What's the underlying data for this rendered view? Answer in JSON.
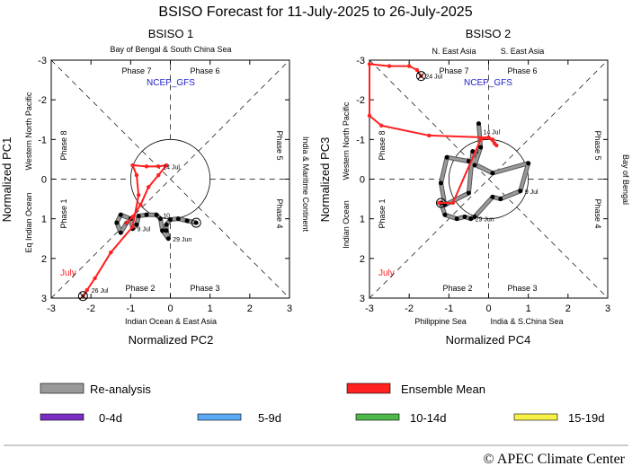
{
  "title": "BSISO Forecast for 11-July-2025 to 26-July-2025",
  "footer": "© APEC Climate Center",
  "legend": {
    "reanalysis": "Re-analysis",
    "ensemble": "Ensemble Mean",
    "leads": [
      {
        "label": "0-4d",
        "color": "#7a2fc2"
      },
      {
        "label": "5-9d",
        "color": "#5aa9f5"
      },
      {
        "label": "10-14d",
        "color": "#4cb84a"
      },
      {
        "label": "15-19d",
        "color": "#f7f047"
      }
    ],
    "reanalysis_color": "#999999",
    "ensemble_color": "#ff2020"
  },
  "chart_data": [
    {
      "type": "scatter",
      "subtitle": "BSISO 1",
      "xlabel": "Normalized PC2",
      "ylabel": "Normalized PC1",
      "xlim": [
        -3,
        3
      ],
      "ylim": [
        3,
        -3
      ],
      "xticks": [
        "-3",
        "-2",
        "-1",
        "0",
        "1",
        "2",
        "3"
      ],
      "yticks": [
        "-3",
        "-2",
        "-1",
        "0",
        "1",
        "2",
        "3"
      ],
      "source_label": "NCEP_GFS",
      "month_label": "July",
      "region_labels": {
        "top": "Bay of Bengal & South China Sea",
        "bottom": "Indian Ocean & East Asia",
        "left_outer": "Eq Indian Ocean",
        "left_inner": "Western North Pacific",
        "right": "India & Maritime Continent"
      },
      "phases": {
        "p1": "Phase 1",
        "p2": "Phase 2",
        "p3": "Phase 3",
        "p4": "Phase 4",
        "p5": "Phase 5",
        "p6": "Phase 6",
        "p7": "Phase 7",
        "p8": "Phase 8"
      },
      "series": [
        {
          "name": "Re-analysis",
          "points": [
            [
              0.65,
              -1.1
            ],
            [
              0.42,
              -1.05
            ],
            [
              0.2,
              -1.0
            ],
            [
              0,
              -1.02
            ],
            [
              -0.1,
              -1.15
            ],
            [
              -0.1,
              -1.3
            ],
            [
              -0.05,
              -1.5
            ],
            [
              -0.2,
              -1.3
            ],
            [
              -0.25,
              -1.0
            ],
            [
              -0.35,
              -0.9
            ],
            [
              -0.6,
              -0.9
            ],
            [
              -0.8,
              -0.93
            ],
            [
              -0.85,
              -1.15
            ],
            [
              -0.95,
              -1.25
            ],
            [
              -1.0,
              -1.0
            ],
            [
              -1.25,
              -0.9
            ],
            [
              -1.35,
              -1.1
            ],
            [
              -1.25,
              -1.35
            ],
            [
              -1.1,
              -1.1
            ]
          ],
          "point_labels": [
            {
              "text": "29 Jun",
              "at": [
                -0.05,
                -1.5
              ]
            },
            {
              "text": "9 Jul",
              "at": [
                -0.95,
                -1.25
              ]
            },
            {
              "text": "4",
              "at": [
                -0.5,
                -0.9
              ]
            },
            {
              "text": "10",
              "at": [
                -0.3,
                -0.9
              ]
            }
          ]
        },
        {
          "name": "Ensemble Mean",
          "points": [
            [
              -1.1,
              -1.1
            ],
            [
              -0.95,
              -0.95
            ],
            [
              -0.75,
              -0.65
            ],
            [
              -0.55,
              -0.2
            ],
            [
              -0.3,
              0.1
            ],
            [
              -0.1,
              0.35
            ],
            [
              -0.3,
              0.32
            ],
            [
              -0.6,
              0.32
            ],
            [
              -0.95,
              0.35
            ],
            [
              -0.85,
              0.1
            ],
            [
              -0.8,
              -0.4
            ],
            [
              -0.95,
              -1.2
            ],
            [
              -1.5,
              -1.85
            ],
            [
              -1.9,
              -2.5
            ],
            [
              -2.1,
              -2.8
            ],
            [
              -2.2,
              -2.95
            ]
          ],
          "point_labels": [
            {
              "text": "14 Jul",
              "at": [
                -0.3,
                0.32
              ]
            },
            {
              "text": "26 Jul",
              "at": [
                -2.1,
                -2.8
              ]
            }
          ]
        }
      ]
    },
    {
      "type": "scatter",
      "subtitle": "BSISO 2",
      "xlabel": "Normalized PC4",
      "ylabel": "Normalized PC3",
      "xlim": [
        -3,
        3
      ],
      "ylim": [
        3,
        -3
      ],
      "xticks": [
        "-3",
        "-2",
        "-1",
        "0",
        "1",
        "2",
        "3"
      ],
      "yticks": [
        "-3",
        "-2",
        "-1",
        "0",
        "1",
        "2",
        "3"
      ],
      "source_label": "NCEP_GFS",
      "month_label": "July",
      "region_labels": {
        "top_left": "N. East Asia",
        "top_right": "S. East Asia",
        "bottom_left": "Philippine Sea",
        "bottom_right": "India & S.China Sea",
        "left_outer": "Indian Ocean",
        "left_inner": "Western North Pacific",
        "right": "Bay of Bengal"
      },
      "phases": {
        "p1": "Phase 1",
        "p2": "Phase 2",
        "p3": "Phase 3",
        "p4": "Phase 4",
        "p5": "Phase 5",
        "p6": "Phase 6",
        "p7": "Phase 7",
        "p8": "Phase 8"
      },
      "series": [
        {
          "name": "Re-analysis",
          "points": [
            [
              -1.2,
              -0.6
            ],
            [
              -1.1,
              -0.9
            ],
            [
              -0.8,
              -1.0
            ],
            [
              -0.6,
              -0.95
            ],
            [
              -0.45,
              -1.0
            ],
            [
              -0.35,
              -0.95
            ],
            [
              0.1,
              -0.45
            ],
            [
              0.3,
              -0.5
            ],
            [
              0.8,
              -0.3
            ],
            [
              1.0,
              0.4
            ],
            [
              0.1,
              0.15
            ],
            [
              -0.5,
              0.45
            ],
            [
              -1.05,
              0.55
            ],
            [
              -1.2,
              -0.1
            ],
            [
              -1.1,
              -0.65
            ],
            [
              -0.5,
              -0.35
            ],
            [
              -0.4,
              0.7
            ],
            [
              -0.35,
              0.35
            ],
            [
              -0.2,
              0.8
            ],
            [
              -0.25,
              1.4
            ]
          ],
          "point_labels": [
            {
              "text": "29 Jun",
              "at": [
                -0.45,
                -1.0
              ]
            },
            {
              "text": "9 Jul",
              "at": [
                0.8,
                -0.3
              ]
            },
            {
              "text": "9",
              "at": [
                -0.45,
                0.7
              ]
            },
            {
              "text": "14 Jul",
              "at": [
                -0.25,
                1.2
              ]
            }
          ]
        },
        {
          "name": "Ensemble Mean",
          "points": [
            [
              -1.25,
              -0.6
            ],
            [
              -0.9,
              -0.6
            ],
            [
              -0.2,
              1.0
            ],
            [
              0,
              1.05
            ],
            [
              0.1,
              1.0
            ],
            [
              0.15,
              0.9
            ],
            [
              0.2,
              0.85
            ],
            [
              0,
              1.05
            ],
            [
              -1.5,
              1.1
            ],
            [
              -2.7,
              1.35
            ],
            [
              -3.0,
              1.6
            ],
            [
              -3.0,
              2.9
            ],
            [
              -2.5,
              2.85
            ],
            [
              -2.0,
              2.85
            ],
            [
              -1.8,
              2.75
            ],
            [
              -1.7,
              2.6
            ]
          ],
          "point_labels": [
            {
              "text": "24 Jul",
              "at": [
                -1.7,
                2.6
              ]
            }
          ]
        }
      ]
    }
  ]
}
